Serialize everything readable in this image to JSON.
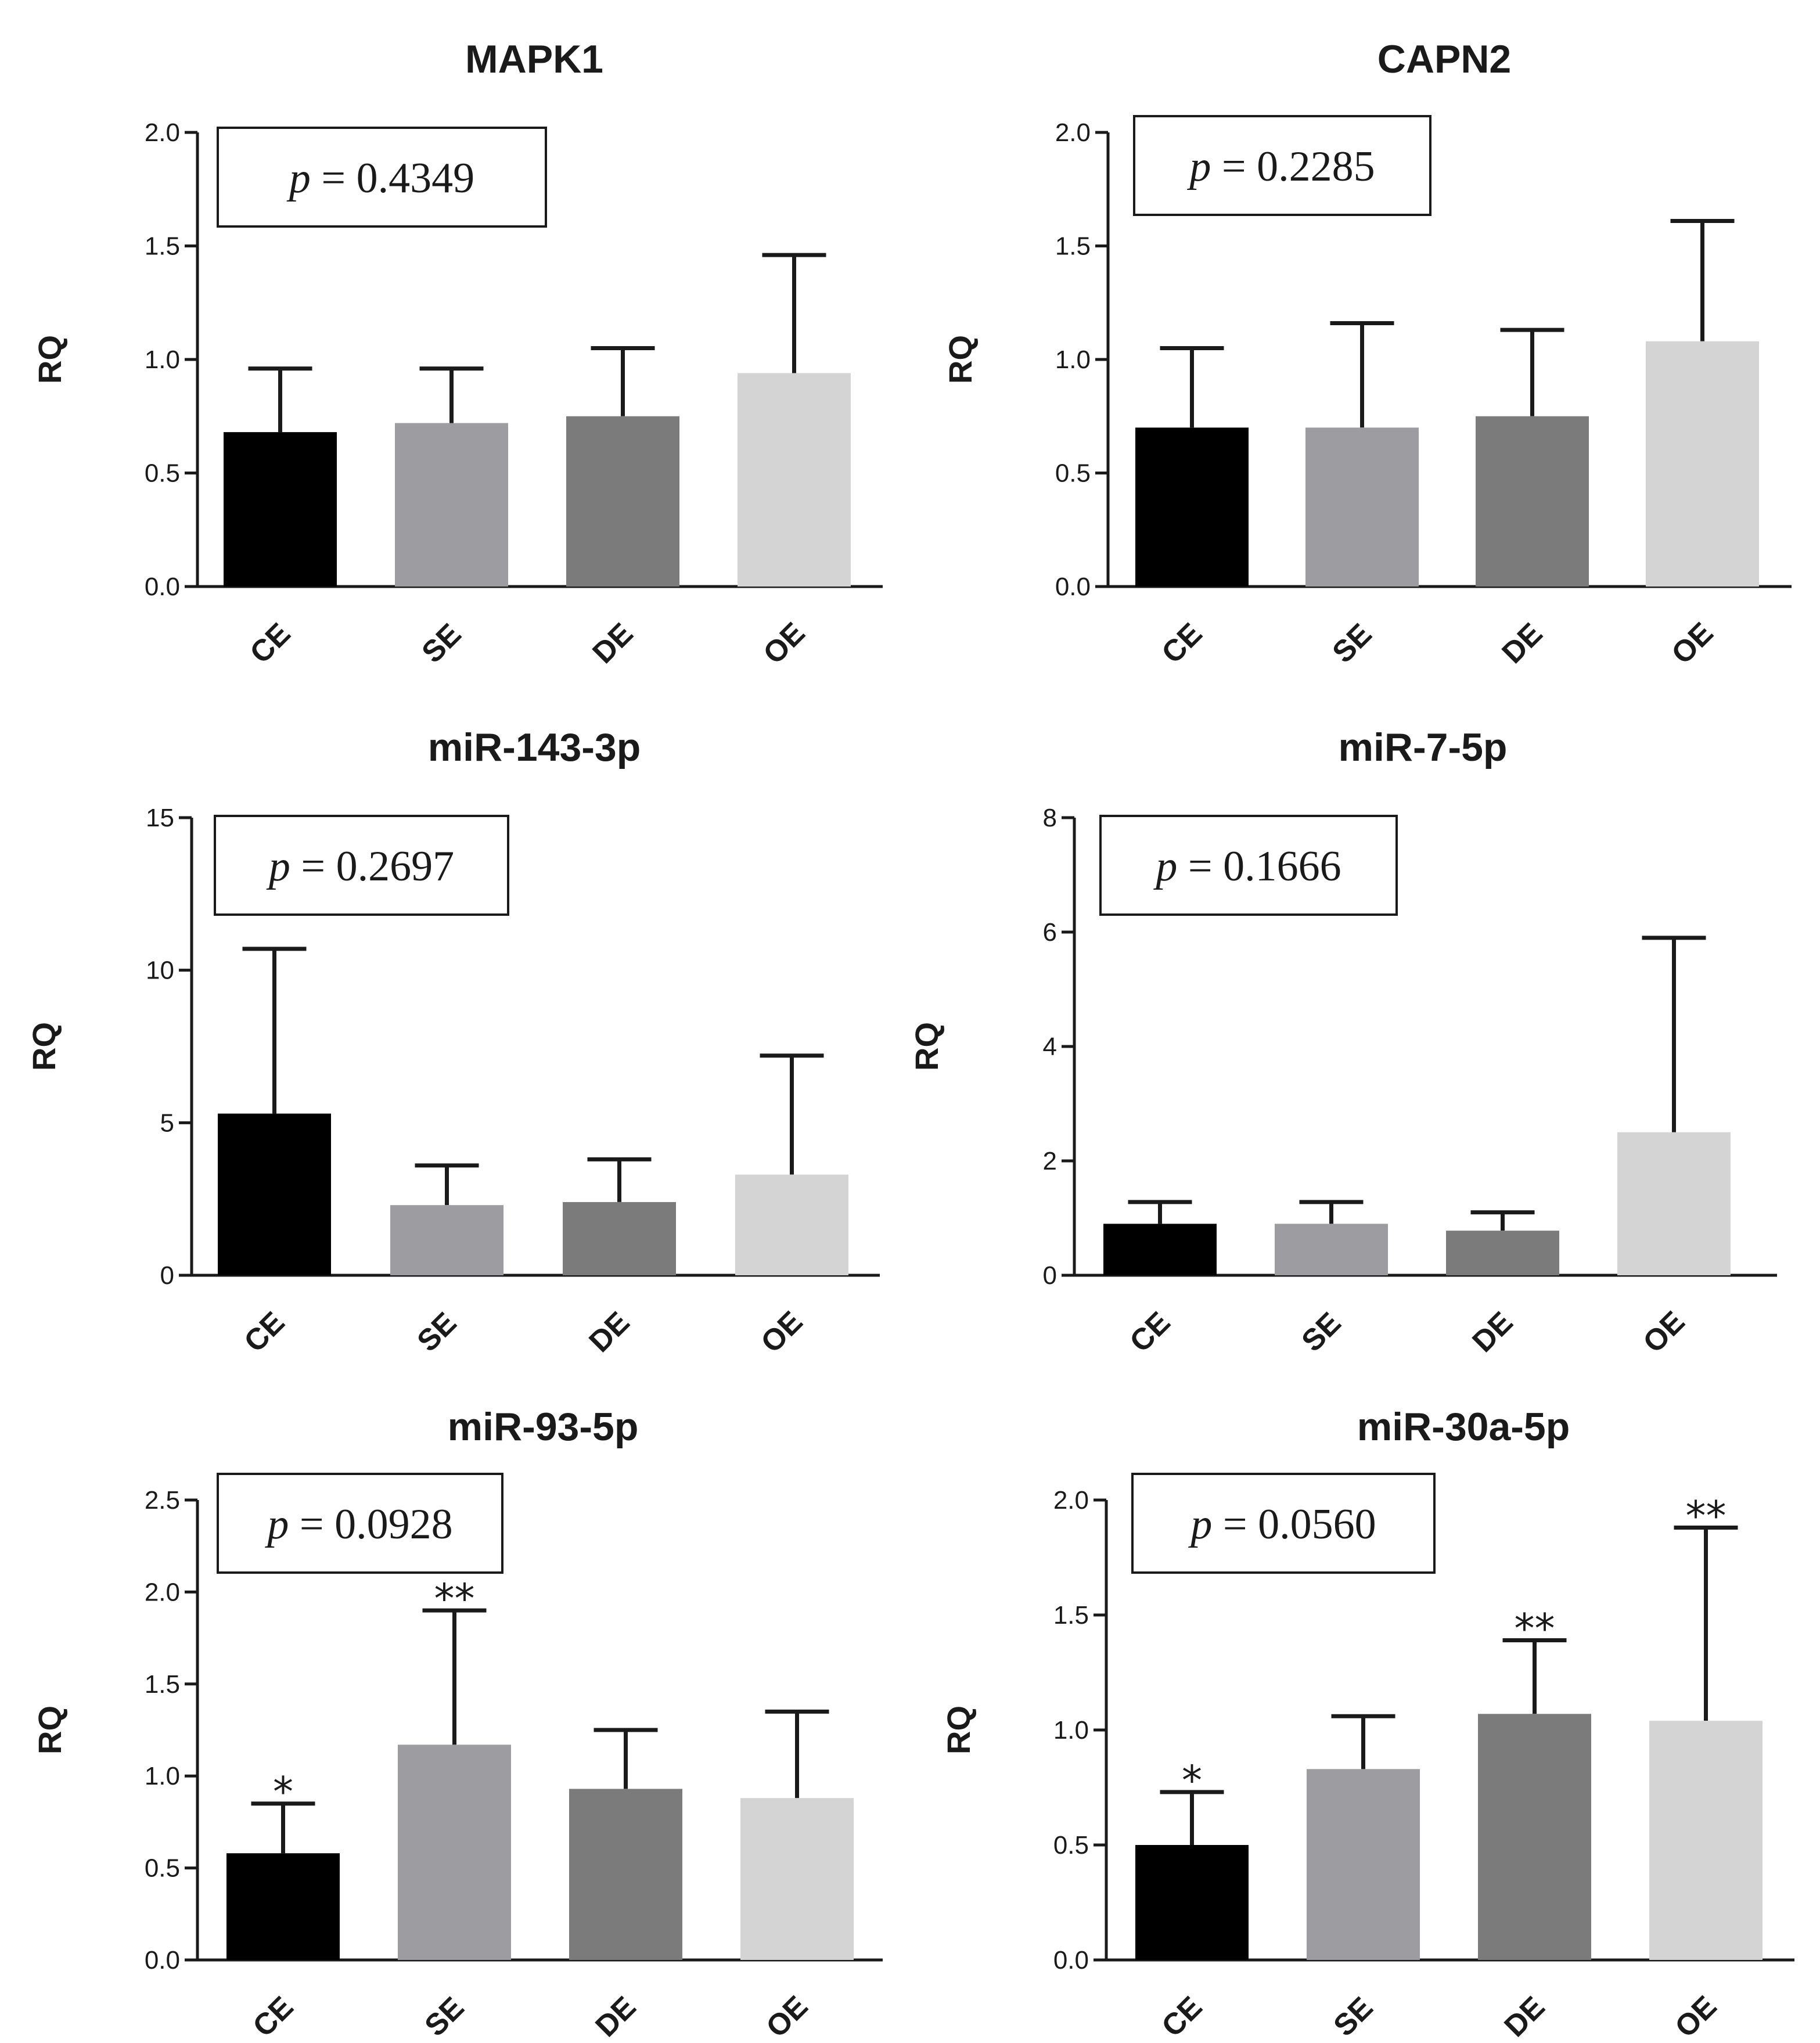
{
  "colors": {
    "CE": "#000000",
    "SE": "#9d9da1",
    "DE": "#7b7b7b",
    "OE": "#d4d4d4"
  },
  "chart_data": [
    {
      "type": "bar",
      "title": "MAPK1",
      "ylabel": "RQ",
      "categories": [
        "CE",
        "SE",
        "DE",
        "OE"
      ],
      "values": [
        0.68,
        0.72,
        0.75,
        0.94
      ],
      "errors_upper": [
        0.96,
        0.96,
        1.05,
        1.46
      ],
      "ylim": [
        0,
        2.0
      ],
      "yticks": [
        0,
        0.5,
        1.0,
        1.5,
        2.0
      ],
      "ytick_labels": [
        "0.0",
        "0.5",
        "1.0",
        "1.5",
        "2.0"
      ],
      "p_label": "p",
      "p_value": "= 0.4349",
      "significance": [
        "",
        "",
        "",
        ""
      ]
    },
    {
      "type": "bar",
      "title": "CAPN2",
      "ylabel": "RQ",
      "categories": [
        "CE",
        "SE",
        "DE",
        "OE"
      ],
      "values": [
        0.7,
        0.7,
        0.75,
        1.08
      ],
      "errors_upper": [
        1.05,
        1.16,
        1.13,
        1.61
      ],
      "ylim": [
        0,
        2.0
      ],
      "yticks": [
        0,
        0.5,
        1.0,
        1.5,
        2.0
      ],
      "ytick_labels": [
        "0.0",
        "0.5",
        "1.0",
        "1.5",
        "2.0"
      ],
      "p_label": "p",
      "p_value": "= 0.2285",
      "significance": [
        "",
        "",
        "",
        ""
      ]
    },
    {
      "type": "bar",
      "title": "miR-143-3p",
      "ylabel": "RQ",
      "categories": [
        "CE",
        "SE",
        "DE",
        "OE"
      ],
      "values": [
        5.3,
        2.3,
        2.4,
        3.3
      ],
      "errors_upper": [
        10.7,
        3.6,
        3.8,
        7.2
      ],
      "ylim": [
        0,
        15
      ],
      "yticks": [
        0,
        5,
        10,
        15
      ],
      "ytick_labels": [
        "0",
        "5",
        "10",
        "15"
      ],
      "p_label": "p",
      "p_value": "= 0.2697",
      "significance": [
        "",
        "",
        "",
        ""
      ]
    },
    {
      "type": "bar",
      "title": "miR-7-5p",
      "ylabel": "RQ",
      "categories": [
        "CE",
        "SE",
        "DE",
        "OE"
      ],
      "values": [
        0.9,
        0.9,
        0.78,
        2.5
      ],
      "errors_upper": [
        1.28,
        1.28,
        1.1,
        5.9
      ],
      "ylim": [
        0,
        8
      ],
      "yticks": [
        0,
        2,
        4,
        6,
        8
      ],
      "ytick_labels": [
        "0",
        "2",
        "4",
        "6",
        "8"
      ],
      "p_label": "p",
      "p_value": "= 0.1666",
      "significance": [
        "",
        "",
        "",
        ""
      ]
    },
    {
      "type": "bar",
      "title": "miR-93-5p",
      "ylabel": "RQ",
      "categories": [
        "CE",
        "SE",
        "DE",
        "OE"
      ],
      "values": [
        0.58,
        1.17,
        0.93,
        0.88
      ],
      "errors_upper": [
        0.85,
        1.9,
        1.25,
        1.35
      ],
      "ylim": [
        0,
        2.5
      ],
      "yticks": [
        0,
        0.5,
        1.0,
        1.5,
        2.0,
        2.5
      ],
      "ytick_labels": [
        "0.0",
        "0.5",
        "1.0",
        "1.5",
        "2.0",
        "2.5"
      ],
      "p_label": "p",
      "p_value": "= 0.0928",
      "significance": [
        "*",
        "**",
        "",
        ""
      ]
    },
    {
      "type": "bar",
      "title": "miR-30a-5p",
      "ylabel": "RQ",
      "categories": [
        "CE",
        "SE",
        "DE",
        "OE"
      ],
      "values": [
        0.5,
        0.83,
        1.07,
        1.04
      ],
      "errors_upper": [
        0.73,
        1.06,
        1.39,
        1.88
      ],
      "ylim": [
        0,
        2.0
      ],
      "yticks": [
        0,
        0.5,
        1.0,
        1.5,
        2.0
      ],
      "ytick_labels": [
        "0.0",
        "0.5",
        "1.0",
        "1.5",
        "2.0"
      ],
      "p_label": "p",
      "p_value": "= 0.0560",
      "significance": [
        "*",
        "",
        "**",
        "**"
      ]
    }
  ]
}
